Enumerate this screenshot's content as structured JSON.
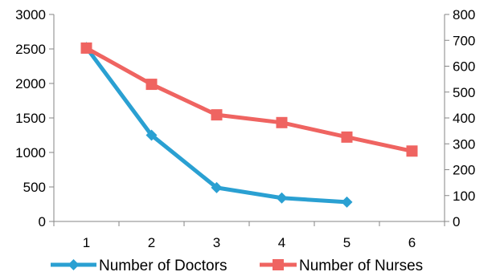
{
  "chart_data": {
    "type": "line",
    "x": [
      "1",
      "2",
      "3",
      "4",
      "5",
      "6"
    ],
    "grid": false,
    "legend_position": "bottom",
    "series": [
      {
        "name": "Number of Doctors",
        "axis": "left",
        "values": [
          2520,
          1250,
          490,
          340,
          280,
          null
        ],
        "color": "#2aa0d2",
        "marker": "diamond"
      },
      {
        "name": "Number of Nurses",
        "axis": "right",
        "values": [
          670,
          530,
          412,
          382,
          326,
          272
        ],
        "color": "#ef6461",
        "marker": "square"
      }
    ],
    "y_left": {
      "ylim": [
        0,
        3000
      ],
      "ticks": [
        "0",
        "500",
        "1000",
        "1500",
        "2000",
        "2500",
        "3000"
      ]
    },
    "y_right": {
      "ylim": [
        0,
        800
      ],
      "ticks": [
        "0",
        "100",
        "200",
        "300",
        "400",
        "500",
        "600",
        "700",
        "800"
      ]
    }
  }
}
